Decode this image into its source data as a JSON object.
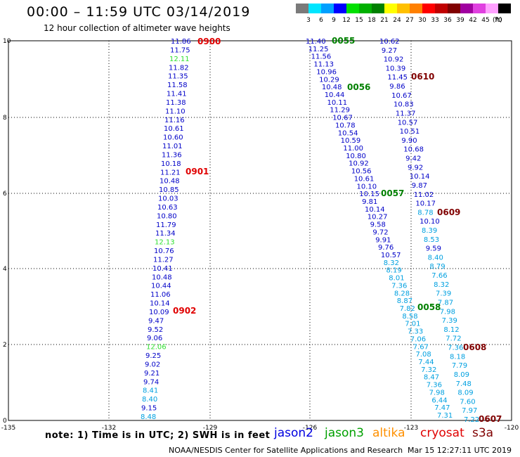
{
  "header": {
    "title": "00:00 – 11:59 UTC 03/14/2019",
    "subtitle": "12 hour collection of altimeter wave heights"
  },
  "color_scale": {
    "unit": "(ft)",
    "bins": [
      {
        "label": "3",
        "color": "#7a7a7a"
      },
      {
        "label": "6",
        "color": "#00e5ff"
      },
      {
        "label": "9",
        "color": "#00a0ff"
      },
      {
        "label": "12",
        "color": "#0000ff"
      },
      {
        "label": "15",
        "color": "#00e000"
      },
      {
        "label": "18",
        "color": "#00b000"
      },
      {
        "label": "21",
        "color": "#008000"
      },
      {
        "label": "24",
        "color": "#ffff00"
      },
      {
        "label": "27",
        "color": "#ffc000"
      },
      {
        "label": "30",
        "color": "#ff8000"
      },
      {
        "label": "33",
        "color": "#ff0000"
      },
      {
        "label": "36",
        "color": "#c00000"
      },
      {
        "label": "39",
        "color": "#800000"
      },
      {
        "label": "42",
        "color": "#a000a0"
      },
      {
        "label": "45",
        "color": "#e040e0"
      },
      {
        "label": "70",
        "color": "#ffa0ff"
      },
      {
        "label": "",
        "color": "#000000"
      }
    ]
  },
  "map": {
    "lon_ticks": [
      "-135",
      "-132",
      "-129",
      "-126",
      "-123",
      "-120"
    ],
    "lat_ticks": [
      "0",
      "2",
      "4",
      "6",
      "8",
      "10"
    ],
    "tracks": [
      {
        "name": "track-left",
        "values": [
          {
            "v": "11.86",
            "c": "#0000c8"
          },
          {
            "v": "11.75",
            "c": "#0000c8"
          },
          {
            "v": "12.11",
            "c": "#30e030"
          },
          {
            "v": "11.82",
            "c": "#0000c8"
          },
          {
            "v": "11.35",
            "c": "#0000c8"
          },
          {
            "v": "11.58",
            "c": "#0000c8"
          },
          {
            "v": "11.41",
            "c": "#0000c8"
          },
          {
            "v": "11.38",
            "c": "#0000c8"
          },
          {
            "v": "11.10",
            "c": "#0000c8"
          },
          {
            "v": "11.16",
            "c": "#0000c8"
          },
          {
            "v": "10.61",
            "c": "#0000c8"
          },
          {
            "v": "10.60",
            "c": "#0000c8"
          },
          {
            "v": "11.01",
            "c": "#0000c8"
          },
          {
            "v": "11.36",
            "c": "#0000c8"
          },
          {
            "v": "10.18",
            "c": "#0000c8"
          },
          {
            "v": "11.21",
            "c": "#0000c8"
          },
          {
            "v": "10.48",
            "c": "#0000c8"
          },
          {
            "v": "10.85",
            "c": "#0000c8"
          },
          {
            "v": "10.03",
            "c": "#0000c8"
          },
          {
            "v": "10.63",
            "c": "#0000c8"
          },
          {
            "v": "10.80",
            "c": "#0000c8"
          },
          {
            "v": "11.79",
            "c": "#0000c8"
          },
          {
            "v": "11.34",
            "c": "#0000c8"
          },
          {
            "v": "12.13",
            "c": "#30e030"
          },
          {
            "v": "10.76",
            "c": "#0000c8"
          },
          {
            "v": "11.27",
            "c": "#0000c8"
          },
          {
            "v": "10.41",
            "c": "#0000c8"
          },
          {
            "v": "10.48",
            "c": "#0000c8"
          },
          {
            "v": "10.44",
            "c": "#0000c8"
          },
          {
            "v": "11.06",
            "c": "#0000c8"
          },
          {
            "v": "10.14",
            "c": "#0000c8"
          },
          {
            "v": "10.09",
            "c": "#0000c8"
          },
          {
            "v": "9.47",
            "c": "#0000c8"
          },
          {
            "v": "9.52",
            "c": "#0000c8"
          },
          {
            "v": "9.06",
            "c": "#0000c8"
          },
          {
            "v": "12.06",
            "c": "#30e030"
          },
          {
            "v": "9.25",
            "c": "#0000c8"
          },
          {
            "v": "9.02",
            "c": "#0000c8"
          },
          {
            "v": "9.21",
            "c": "#0000c8"
          },
          {
            "v": "9.74",
            "c": "#0000c8"
          },
          {
            "v": "8.41",
            "c": "#00a0e0"
          },
          {
            "v": "8.40",
            "c": "#00a0e0"
          },
          {
            "v": "9.15",
            "c": "#0000c8"
          },
          {
            "v": "8.48",
            "c": "#00a0e0"
          }
        ]
      },
      {
        "name": "track-jason3",
        "values": [
          {
            "v": "11.40",
            "c": "#0000c8"
          },
          {
            "v": "11.25",
            "c": "#0000c8"
          },
          {
            "v": "11.56",
            "c": "#0000c8"
          },
          {
            "v": "11.13",
            "c": "#0000c8"
          },
          {
            "v": "10.96",
            "c": "#0000c8"
          },
          {
            "v": "10.29",
            "c": "#0000c8"
          },
          {
            "v": "10.48",
            "c": "#0000c8"
          },
          {
            "v": "10.44",
            "c": "#0000c8"
          },
          {
            "v": "10.11",
            "c": "#0000c8"
          },
          {
            "v": "11.29",
            "c": "#0000c8"
          },
          {
            "v": "10.67",
            "c": "#0000c8"
          },
          {
            "v": "10.78",
            "c": "#0000c8"
          },
          {
            "v": "10.54",
            "c": "#0000c8"
          },
          {
            "v": "10.59",
            "c": "#0000c8"
          },
          {
            "v": "11.00",
            "c": "#0000c8"
          },
          {
            "v": "10.80",
            "c": "#0000c8"
          },
          {
            "v": "10.92",
            "c": "#0000c8"
          },
          {
            "v": "10.56",
            "c": "#0000c8"
          },
          {
            "v": "10.61",
            "c": "#0000c8"
          },
          {
            "v": "10.10",
            "c": "#0000c8"
          },
          {
            "v": "10.15",
            "c": "#0000c8"
          },
          {
            "v": "9.81",
            "c": "#0000c8"
          },
          {
            "v": "10.14",
            "c": "#0000c8"
          },
          {
            "v": "10.27",
            "c": "#0000c8"
          },
          {
            "v": "9.58",
            "c": "#0000c8"
          },
          {
            "v": "9.72",
            "c": "#0000c8"
          },
          {
            "v": "9.91",
            "c": "#0000c8"
          },
          {
            "v": "9.76",
            "c": "#0000c8"
          },
          {
            "v": "10.57",
            "c": "#0000c8"
          },
          {
            "v": "8.32",
            "c": "#00a0e0"
          },
          {
            "v": "8.19",
            "c": "#00a0e0"
          },
          {
            "v": "8.01",
            "c": "#00a0e0"
          },
          {
            "v": "7.36",
            "c": "#00a0e0"
          },
          {
            "v": "8.28",
            "c": "#00a0e0"
          },
          {
            "v": "8.87",
            "c": "#00a0e0"
          },
          {
            "v": "7.82",
            "c": "#00a0e0"
          },
          {
            "v": "8.58",
            "c": "#00a0e0"
          },
          {
            "v": "7.01",
            "c": "#00a0e0"
          },
          {
            "v": "7.33",
            "c": "#00a0e0"
          },
          {
            "v": "7.06",
            "c": "#00a0e0"
          },
          {
            "v": "7.67",
            "c": "#00a0e0"
          },
          {
            "v": "7.08",
            "c": "#00a0e0"
          },
          {
            "v": "7.44",
            "c": "#00a0e0"
          },
          {
            "v": "7.32",
            "c": "#00a0e0"
          },
          {
            "v": "8.47",
            "c": "#00a0e0"
          },
          {
            "v": "7.36",
            "c": "#00a0e0"
          },
          {
            "v": "7.98",
            "c": "#00a0e0"
          },
          {
            "v": "6.44",
            "c": "#00a0e0"
          },
          {
            "v": "7.47",
            "c": "#00a0e0"
          },
          {
            "v": "7.31",
            "c": "#00a0e0"
          }
        ]
      },
      {
        "name": "track-cryosat",
        "values": [
          {
            "v": "10.62",
            "c": "#0000c8"
          },
          {
            "v": "9.27",
            "c": "#0000c8"
          },
          {
            "v": "10.92",
            "c": "#0000c8"
          },
          {
            "v": "10.39",
            "c": "#0000c8"
          },
          {
            "v": "11.45",
            "c": "#0000c8"
          },
          {
            "v": "9.86",
            "c": "#0000c8"
          },
          {
            "v": "10.67",
            "c": "#0000c8"
          },
          {
            "v": "10.83",
            "c": "#0000c8"
          },
          {
            "v": "11.37",
            "c": "#0000c8"
          },
          {
            "v": "10.57",
            "c": "#0000c8"
          },
          {
            "v": "10.51",
            "c": "#0000c8"
          },
          {
            "v": "9.90",
            "c": "#0000c8"
          },
          {
            "v": "10.68",
            "c": "#0000c8"
          },
          {
            "v": "9.42",
            "c": "#0000c8"
          },
          {
            "v": "9.92",
            "c": "#0000c8"
          },
          {
            "v": "10.14",
            "c": "#0000c8"
          },
          {
            "v": "9.87",
            "c": "#0000c8"
          },
          {
            "v": "11.02",
            "c": "#0000c8"
          },
          {
            "v": "10.17",
            "c": "#0000c8"
          },
          {
            "v": "8.78",
            "c": "#00a0e0"
          },
          {
            "v": "10.10",
            "c": "#0000c8"
          },
          {
            "v": "8.39",
            "c": "#00a0e0"
          },
          {
            "v": "8.53",
            "c": "#00a0e0"
          },
          {
            "v": "9.59",
            "c": "#0000c8"
          },
          {
            "v": "8.40",
            "c": "#00a0e0"
          },
          {
            "v": "8.79",
            "c": "#00a0e0"
          },
          {
            "v": "7.66",
            "c": "#00a0e0"
          },
          {
            "v": "8.32",
            "c": "#00a0e0"
          },
          {
            "v": "7.39",
            "c": "#00a0e0"
          },
          {
            "v": "7.87",
            "c": "#00a0e0"
          },
          {
            "v": "7.98",
            "c": "#00a0e0"
          },
          {
            "v": "7.39",
            "c": "#00a0e0"
          },
          {
            "v": "8.12",
            "c": "#00a0e0"
          },
          {
            "v": "7.72",
            "c": "#00a0e0"
          },
          {
            "v": "7.36",
            "c": "#00a0e0"
          },
          {
            "v": "8.18",
            "c": "#00a0e0"
          },
          {
            "v": "7.79",
            "c": "#00a0e0"
          },
          {
            "v": "8.09",
            "c": "#00a0e0"
          },
          {
            "v": "7.48",
            "c": "#00a0e0"
          },
          {
            "v": "8.09",
            "c": "#00a0e0"
          },
          {
            "v": "7.60",
            "c": "#00a0e0"
          },
          {
            "v": "7.97",
            "c": "#00a0e0"
          },
          {
            "v": "7.22",
            "c": "#00a0e0"
          }
        ]
      }
    ],
    "time_labels": [
      {
        "t": "0900",
        "c": "#e00000"
      },
      {
        "t": "0901",
        "c": "#e00000"
      },
      {
        "t": "0902",
        "c": "#e00000"
      },
      {
        "t": "0055",
        "c": "#008000"
      },
      {
        "t": "0056",
        "c": "#008000"
      },
      {
        "t": "0057",
        "c": "#008000"
      },
      {
        "t": "0058",
        "c": "#008000"
      },
      {
        "t": "0610",
        "c": "#800000"
      },
      {
        "t": "0609",
        "c": "#800000"
      },
      {
        "t": "0608",
        "c": "#800000"
      },
      {
        "t": "0607",
        "c": "#800000"
      }
    ]
  },
  "note": "note:  1) Time is in UTC;  2) SWH is in feet",
  "legend": [
    {
      "name": "jason2",
      "color": "#0000e0"
    },
    {
      "name": "jason3",
      "color": "#00a000"
    },
    {
      "name": "altika",
      "color": "#ff9000"
    },
    {
      "name": "cryosat",
      "color": "#e00000"
    },
    {
      "name": "s3a",
      "color": "#800000"
    }
  ],
  "footer": {
    "credit": "NOAA/NESDIS Center for Satellite Applications and Research",
    "timestamp": "Mar 15 12:27:11 UTC 2019"
  }
}
